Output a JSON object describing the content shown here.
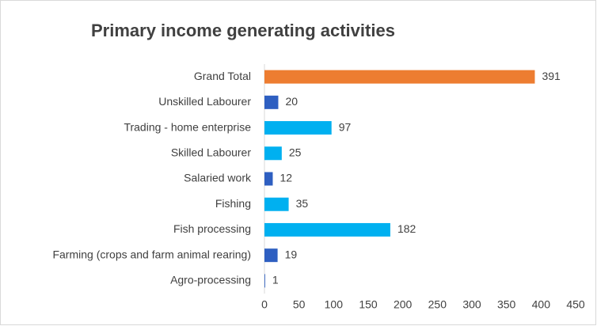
{
  "chart_data": {
    "type": "bar",
    "orientation": "horizontal",
    "title": "Primary  income generating activities",
    "categories": [
      "Grand Total",
      "Unskilled Labourer",
      "Trading - home enterprise",
      "Skilled Labourer",
      "Salaried work",
      "Fishing",
      "Fish processing",
      "Farming (crops and farm animal rearing)",
      "Agro-processing"
    ],
    "values": [
      391,
      20,
      97,
      25,
      12,
      35,
      182,
      19,
      1
    ],
    "colors": [
      "#ed7d31",
      "#2e5fc1",
      "#00b0f0",
      "#00b0f0",
      "#2e5fc1",
      "#00b0f0",
      "#00b0f0",
      "#2e5fc1",
      "#2e5fc1"
    ],
    "xlim": [
      0,
      450
    ],
    "xticks": [
      0,
      50,
      100,
      150,
      200,
      250,
      300,
      350,
      400,
      450
    ]
  }
}
